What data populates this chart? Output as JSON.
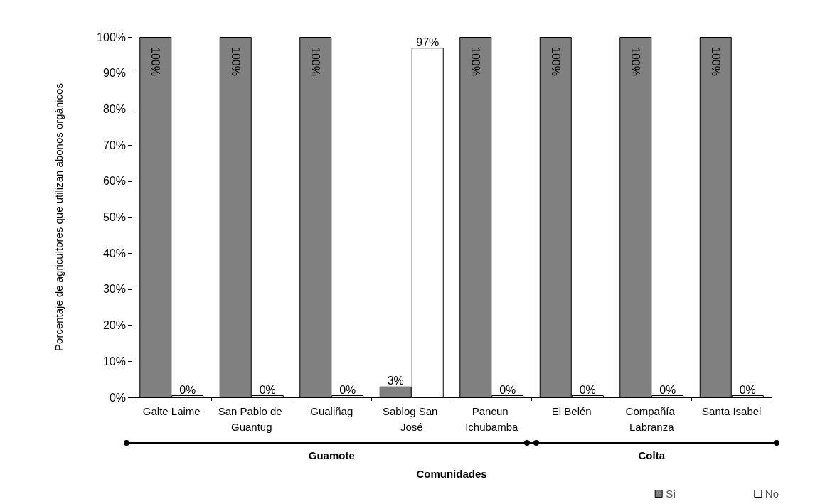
{
  "chart_data": {
    "type": "bar",
    "xlabel": "Comunidades",
    "ylabel": "Porcentaje de agricultores que utilizan abonos orgánicos",
    "categories": [
      "Galte Laime",
      "San Pablo de Guantug",
      "Gualiñag",
      "Sablog San José",
      "Pancun Ichubamba",
      "El Belén",
      "Compañía Labranza",
      "Santa Isabel"
    ],
    "series": [
      {
        "name": "Sí",
        "color": "#808080",
        "values": [
          100,
          100,
          100,
          3,
          100,
          100,
          100,
          100
        ],
        "value_labels": [
          "100%",
          "100%",
          "100%",
          "3%",
          "100%",
          "100%",
          "100%",
          "100%"
        ]
      },
      {
        "name": "No",
        "color": "#ffffff",
        "values": [
          0,
          0,
          0,
          97,
          0,
          0,
          0,
          0
        ],
        "value_labels": [
          "0%",
          "0%",
          "0%",
          "97%",
          "0%",
          "0%",
          "0%",
          "0%"
        ]
      }
    ],
    "ylim": [
      0,
      100
    ],
    "yticks": [
      {
        "value": 0,
        "label": "0%"
      },
      {
        "value": 10,
        "label": "10%"
      },
      {
        "value": 20,
        "label": "20%"
      },
      {
        "value": 30,
        "label": "30%"
      },
      {
        "value": 40,
        "label": "40%"
      },
      {
        "value": 50,
        "label": "50%"
      },
      {
        "value": 60,
        "label": "60%"
      },
      {
        "value": 70,
        "label": "70%"
      },
      {
        "value": 80,
        "label": "80%"
      },
      {
        "value": 90,
        "label": "90%"
      },
      {
        "value": 100,
        "label": "100%"
      }
    ],
    "annotations": [
      "Guamote",
      "Colta"
    ],
    "grid": false,
    "legend": "bottom right"
  }
}
